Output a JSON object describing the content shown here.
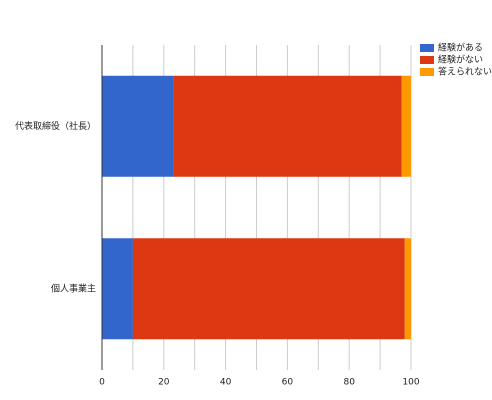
{
  "chart_data": {
    "type": "stacked_barh",
    "categories": [
      "代表取締役（社長）",
      "個人事業主"
    ],
    "series": [
      {
        "name": "経験がある",
        "color": "#3366cc",
        "values": [
          23,
          10
        ]
      },
      {
        "name": "経験がない",
        "color": "#dc3912",
        "values": [
          74,
          88
        ]
      },
      {
        "name": "答えられない",
        "color": "#ff9900",
        "values": [
          3,
          2
        ]
      }
    ],
    "xlim": [
      0,
      100
    ],
    "xticks": [
      0,
      20,
      40,
      60,
      80,
      100
    ],
    "x_gridlines": [
      10,
      20,
      30,
      40,
      50,
      60,
      70,
      80,
      90,
      100
    ],
    "grid": true,
    "legend": "top-right"
  }
}
